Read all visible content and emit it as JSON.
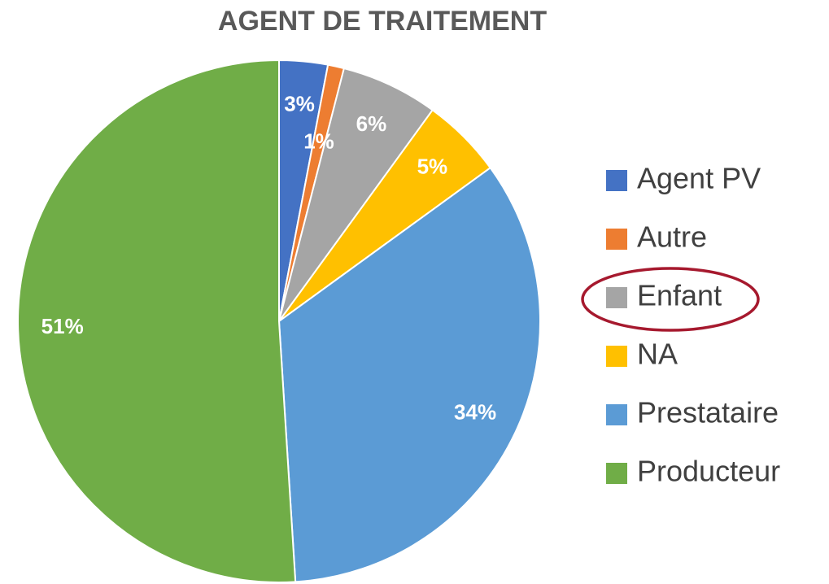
{
  "chart_data": {
    "type": "pie",
    "title": "AGENT DE TRAITEMENT",
    "categories": [
      "Agent PV",
      "Autre",
      "Enfant",
      "NA",
      "Prestataire",
      "Producteur"
    ],
    "values": [
      3,
      1,
      6,
      5,
      34,
      51
    ],
    "value_labels": [
      "3%",
      "1%",
      "6%",
      "5%",
      "34%",
      "51%"
    ],
    "colors": [
      "#4472c4",
      "#ed7d31",
      "#a5a5a5",
      "#ffc000",
      "#5b9bd5",
      "#70ad47"
    ],
    "legend": "right"
  }
}
